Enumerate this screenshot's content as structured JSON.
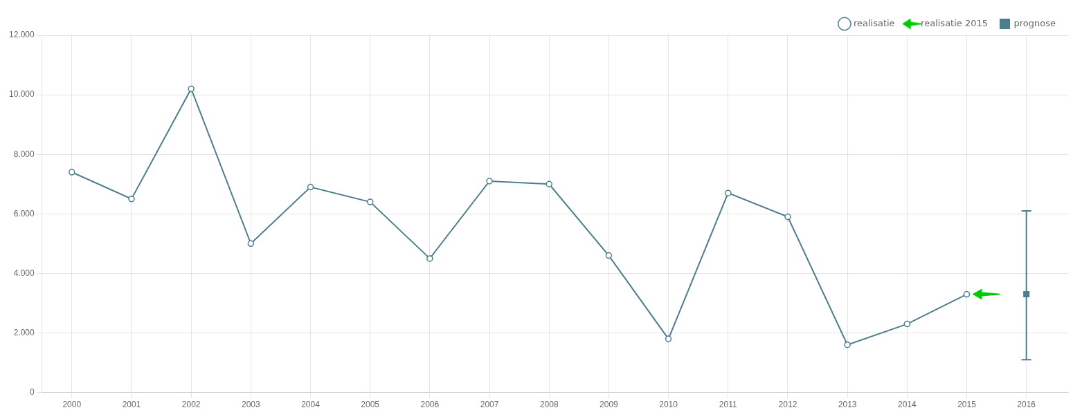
{
  "chart_data": {
    "type": "line",
    "series": [
      {
        "name": "realisatie",
        "type": "line",
        "marker": "circle",
        "color": "#4d7e8a",
        "x": [
          2000,
          2001,
          2002,
          2003,
          2004,
          2005,
          2006,
          2007,
          2008,
          2009,
          2010,
          2011,
          2012,
          2013,
          2014,
          2015
        ],
        "values": [
          7400,
          6500,
          10200,
          5000,
          6900,
          6400,
          4500,
          7100,
          7000,
          4600,
          1800,
          6700,
          5900,
          1600,
          2300,
          3300
        ]
      },
      {
        "name": "realisatie 2015",
        "type": "scatter",
        "marker": "arrow",
        "color": "#00cc00",
        "x": [
          2015
        ],
        "values": [
          3300
        ]
      },
      {
        "name": "prognose",
        "type": "scatter",
        "marker": "square",
        "color": "#4d7e8a",
        "x": [
          2016
        ],
        "values": [
          3300
        ],
        "low": [
          1100
        ],
        "high": [
          6100
        ]
      }
    ],
    "xlim": [
      1999.5,
      2016.7
    ],
    "xticks": [
      2000,
      2001,
      2002,
      2003,
      2004,
      2005,
      2006,
      2007,
      2008,
      2009,
      2010,
      2011,
      2012,
      2013,
      2014,
      2015,
      2016
    ],
    "ylim": [
      0,
      12000
    ],
    "yticks": [
      0,
      {
        "value": 2000,
        "label": "2.000"
      },
      {
        "value": 4000,
        "label": "4.000"
      },
      {
        "value": 6000,
        "label": "6.000"
      },
      {
        "value": 8000,
        "label": "8.000"
      },
      {
        "value": 10000,
        "label": "10.000"
      },
      {
        "value": 12000,
        "label": "12.000"
      }
    ],
    "grid": true,
    "legend": "upper right"
  }
}
